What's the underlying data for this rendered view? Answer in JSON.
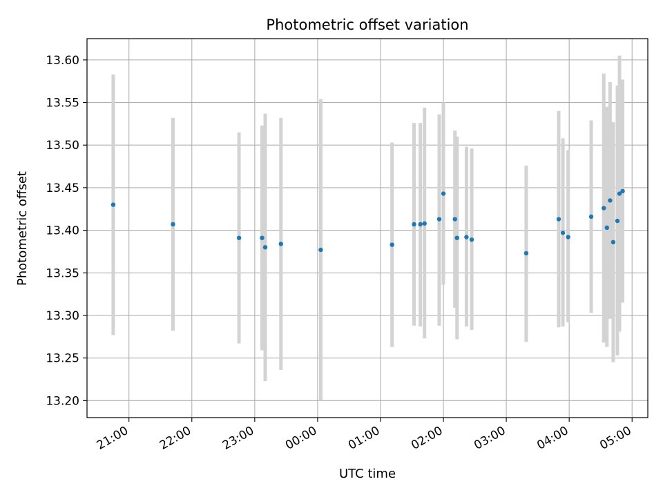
{
  "chart_data": {
    "type": "scatter",
    "title": "Photometric offset variation",
    "xlabel": "UTC time",
    "ylabel": "Photometric offset",
    "x_axis": {
      "start": "20:20",
      "end": "05:15",
      "ticks": [
        "21:00",
        "22:00",
        "23:00",
        "00:00",
        "01:00",
        "02:00",
        "03:00",
        "04:00",
        "05:00"
      ]
    },
    "ylim": [
      13.18,
      13.625
    ],
    "y_ticks": [
      "13.20",
      "13.25",
      "13.30",
      "13.35",
      "13.40",
      "13.45",
      "13.50",
      "13.55",
      "13.60"
    ],
    "grid": true,
    "colors": {
      "points": "#1f77b4",
      "errorbars": "#d3d3d3",
      "grid": "#b0b0b0"
    },
    "points": [
      {
        "t": "20:45",
        "y": 13.43,
        "lo": 13.277,
        "hi": 13.583
      },
      {
        "t": "21:42",
        "y": 13.407,
        "lo": 13.282,
        "hi": 13.532
      },
      {
        "t": "22:45",
        "y": 13.391,
        "lo": 13.267,
        "hi": 13.515
      },
      {
        "t": "23:07",
        "y": 13.391,
        "lo": 13.259,
        "hi": 13.523
      },
      {
        "t": "23:10",
        "y": 13.38,
        "lo": 13.223,
        "hi": 13.537
      },
      {
        "t": "23:25",
        "y": 13.384,
        "lo": 13.236,
        "hi": 13.532
      },
      {
        "t": "00:03",
        "y": 13.377,
        "lo": 13.2,
        "hi": 13.554
      },
      {
        "t": "01:11",
        "y": 13.383,
        "lo": 13.263,
        "hi": 13.503
      },
      {
        "t": "01:32",
        "y": 13.407,
        "lo": 13.288,
        "hi": 13.526
      },
      {
        "t": "01:38",
        "y": 13.407,
        "lo": 13.287,
        "hi": 13.526
      },
      {
        "t": "01:42",
        "y": 13.408,
        "lo": 13.273,
        "hi": 13.544
      },
      {
        "t": "01:56",
        "y": 13.413,
        "lo": 13.288,
        "hi": 13.536
      },
      {
        "t": "02:00",
        "y": 13.443,
        "lo": 13.336,
        "hi": 13.55
      },
      {
        "t": "02:11",
        "y": 13.413,
        "lo": 13.309,
        "hi": 13.517
      },
      {
        "t": "02:13",
        "y": 13.391,
        "lo": 13.272,
        "hi": 13.51
      },
      {
        "t": "02:22",
        "y": 13.392,
        "lo": 13.287,
        "hi": 13.498
      },
      {
        "t": "02:27",
        "y": 13.389,
        "lo": 13.283,
        "hi": 13.496
      },
      {
        "t": "03:19",
        "y": 13.373,
        "lo": 13.269,
        "hi": 13.476
      },
      {
        "t": "03:50",
        "y": 13.413,
        "lo": 13.286,
        "hi": 13.54
      },
      {
        "t": "03:54",
        "y": 13.397,
        "lo": 13.287,
        "hi": 13.508
      },
      {
        "t": "03:59",
        "y": 13.392,
        "lo": 13.292,
        "hi": 13.494
      },
      {
        "t": "04:21",
        "y": 13.416,
        "lo": 13.303,
        "hi": 13.529
      },
      {
        "t": "04:33",
        "y": 13.426,
        "lo": 13.268,
        "hi": 13.584
      },
      {
        "t": "04:36",
        "y": 13.403,
        "lo": 13.263,
        "hi": 13.545
      },
      {
        "t": "04:39",
        "y": 13.435,
        "lo": 13.296,
        "hi": 13.574
      },
      {
        "t": "04:42",
        "y": 13.386,
        "lo": 13.245,
        "hi": 13.527
      },
      {
        "t": "04:46",
        "y": 13.411,
        "lo": 13.253,
        "hi": 13.57
      },
      {
        "t": "04:48",
        "y": 13.443,
        "lo": 13.281,
        "hi": 13.605
      },
      {
        "t": "04:51",
        "y": 13.446,
        "lo": 13.315,
        "hi": 13.577
      }
    ]
  }
}
